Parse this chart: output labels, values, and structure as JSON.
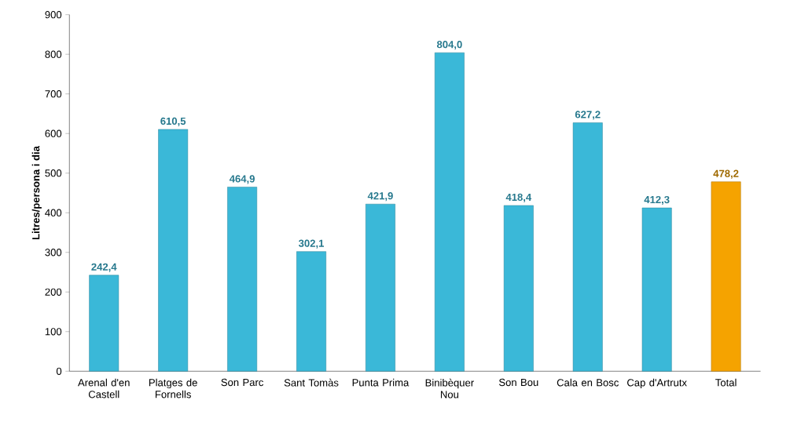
{
  "chart_data": {
    "type": "bar",
    "ylabel": "Litres/persona i dia",
    "categories": [
      "Arenal d'en Castell",
      "Platges de Fornells",
      "Son Parc",
      "Sant Tomàs",
      "Punta Prima",
      "Binibèquer Nou",
      "Son Bou",
      "Cala en Bosc",
      "Cap d'Artrutx",
      "Total"
    ],
    "values": [
      242.4,
      610.5,
      464.9,
      302.1,
      421.9,
      804.0,
      418.4,
      627.2,
      412.3,
      478.2
    ],
    "value_labels": [
      "242,4",
      "610,5",
      "464,9",
      "302,1",
      "421,9",
      "804,0",
      "418,4",
      "627,2",
      "412,3",
      "478,2"
    ],
    "colors": [
      "#3ab8d8",
      "#3ab8d8",
      "#3ab8d8",
      "#3ab8d8",
      "#3ab8d8",
      "#3ab8d8",
      "#3ab8d8",
      "#3ab8d8",
      "#3ab8d8",
      "#f5a300"
    ],
    "ylim": [
      0,
      900
    ],
    "yticks": [
      0,
      100,
      200,
      300,
      400,
      500,
      600,
      700,
      800,
      900
    ],
    "grid": false
  }
}
